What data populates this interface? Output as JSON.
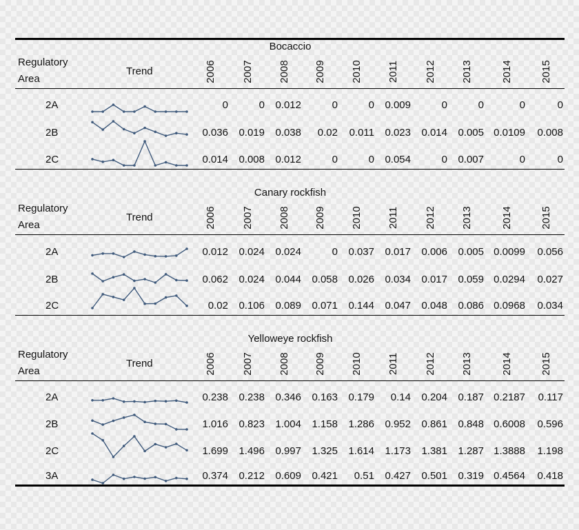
{
  "headers": {
    "regulatory_line1": "Regulatory",
    "regulatory_line2": "Area",
    "trend": "Trend",
    "years": [
      "2006",
      "2007",
      "2008",
      "2009",
      "2010",
      "2011",
      "2012",
      "2013",
      "2014",
      "2015"
    ]
  },
  "tables": [
    {
      "species": "Bocaccio",
      "rows": [
        {
          "area": "2A",
          "values": [
            "0",
            "0",
            "0.012",
            "0",
            "0",
            "0.009",
            "0",
            "0",
            "0",
            "0"
          ]
        },
        {
          "area": "2B",
          "values": [
            "0.036",
            "0.019",
            "0.038",
            "0.02",
            "0.011",
            "0.023",
            "0.014",
            "0.005",
            "0.0109",
            "0.008"
          ]
        },
        {
          "area": "2C",
          "values": [
            "0.014",
            "0.008",
            "0.012",
            "0",
            "0",
            "0.054",
            "0",
            "0.007",
            "0",
            "0"
          ]
        }
      ]
    },
    {
      "species": "Canary rockfish",
      "rows": [
        {
          "area": "2A",
          "values": [
            "0.012",
            "0.024",
            "0.024",
            "0",
            "0.037",
            "0.017",
            "0.006",
            "0.005",
            "0.0099",
            "0.056"
          ]
        },
        {
          "area": "2B",
          "values": [
            "0.062",
            "0.024",
            "0.044",
            "0.058",
            "0.026",
            "0.034",
            "0.017",
            "0.059",
            "0.0294",
            "0.027"
          ]
        },
        {
          "area": "2C",
          "values": [
            "0.02",
            "0.106",
            "0.089",
            "0.071",
            "0.144",
            "0.047",
            "0.048",
            "0.086",
            "0.0968",
            "0.034"
          ]
        }
      ]
    },
    {
      "species": "Yelloweye rockfish",
      "rows": [
        {
          "area": "2A",
          "values": [
            "0.238",
            "0.238",
            "0.346",
            "0.163",
            "0.179",
            "0.14",
            "0.204",
            "0.187",
            "0.2187",
            "0.117"
          ]
        },
        {
          "area": "2B",
          "values": [
            "1.016",
            "0.823",
            "1.004",
            "1.158",
            "1.286",
            "0.952",
            "0.861",
            "0.848",
            "0.6008",
            "0.596"
          ]
        },
        {
          "area": "2C",
          "values": [
            "1.699",
            "1.496",
            "0.997",
            "1.325",
            "1.614",
            "1.173",
            "1.381",
            "1.287",
            "1.3888",
            "1.198"
          ]
        },
        {
          "area": "3A",
          "values": [
            "0.374",
            "0.212",
            "0.609",
            "0.421",
            "0.51",
            "0.427",
            "0.501",
            "0.319",
            "0.4564",
            "0.418"
          ]
        }
      ]
    }
  ]
}
